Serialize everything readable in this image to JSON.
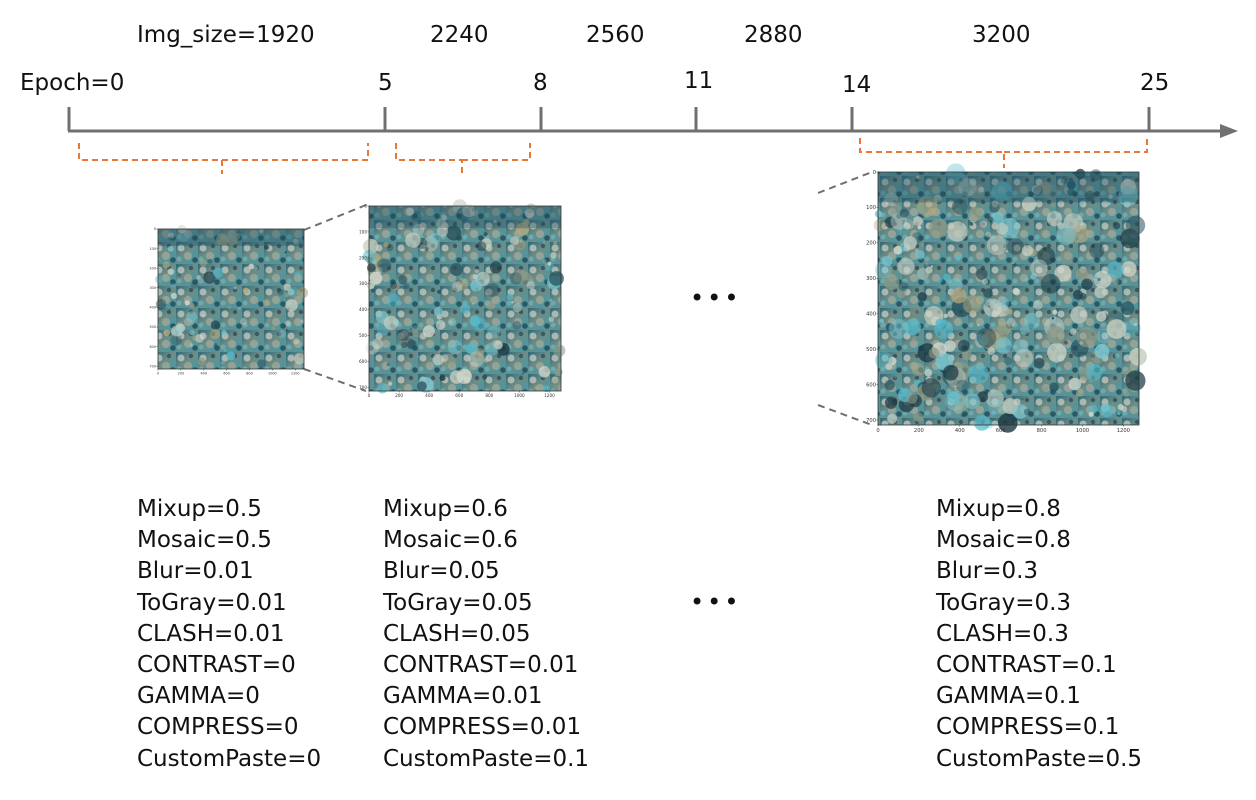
{
  "timeline": {
    "epoch_label": "Epoch=0",
    "epoch_ticks": [
      "5",
      "8",
      "11",
      "14",
      "25"
    ],
    "img_size_labels": [
      "Img_size=1920",
      "2240",
      "2560",
      "2880",
      "3200"
    ]
  },
  "images": [
    {
      "name": "small",
      "x_ticks": [
        "0",
        "200",
        "400",
        "600",
        "800",
        "1000",
        "1200"
      ],
      "y_ticks": [
        "0",
        "100",
        "200",
        "300",
        "400",
        "500",
        "600",
        "700"
      ]
    },
    {
      "name": "medium",
      "x_ticks": [
        "0",
        "200",
        "400",
        "600",
        "800",
        "1000",
        "1200"
      ],
      "y_ticks": [
        "0",
        "100",
        "200",
        "300",
        "400",
        "500",
        "600",
        "700"
      ]
    },
    {
      "name": "large",
      "x_ticks": [
        "0",
        "200",
        "400",
        "600",
        "800",
        "1000",
        "1200"
      ],
      "y_ticks": [
        "0",
        "100",
        "200",
        "300",
        "400",
        "500",
        "600",
        "700"
      ]
    }
  ],
  "ellipsis": "•••",
  "augmentations": [
    {
      "items": [
        "Mixup=0.5",
        "Mosaic=0.5",
        "Blur=0.01",
        "ToGray=0.01",
        "CLASH=0.01",
        "CONTRAST=0",
        "GAMMA=0",
        "COMPRESS=0",
        "CustomPaste=0"
      ]
    },
    {
      "items": [
        "Mixup=0.6",
        "Mosaic=0.6",
        "Blur=0.05",
        "ToGray=0.05",
        "CLASH=0.05",
        "CONTRAST=0.01",
        "GAMMA=0.01",
        "COMPRESS=0.01",
        "CustomPaste=0.1"
      ]
    },
    {
      "items": [
        "Mixup=0.8",
        "Mosaic=0.8",
        "Blur=0.3",
        "ToGray=0.3",
        "CLASH=0.3",
        "CONTRAST=0.1",
        "GAMMA=0.1",
        "COMPRESS=0.1",
        "CustomPaste=0.5"
      ]
    }
  ],
  "colors": {
    "axis": "#707070",
    "bracket": "#e8773a",
    "zoom_line": "#707070",
    "water_dark": "#1c4a5e",
    "water_light": "#4fb6c6",
    "coral": "#b8bfae"
  }
}
